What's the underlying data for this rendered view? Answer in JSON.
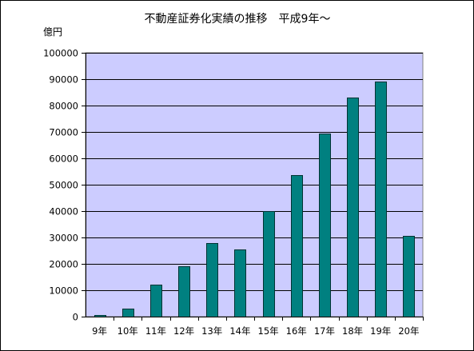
{
  "chart_data": {
    "type": "bar",
    "title": "不動産証券化実績の推移　平成9年～",
    "ylabel": "億円",
    "xlabel": "",
    "categories": [
      "9年",
      "10年",
      "11年",
      "12年",
      "13年",
      "14年",
      "15年",
      "16年",
      "17年",
      "18年",
      "19年",
      "20年"
    ],
    "values": [
      700,
      3000,
      12000,
      19000,
      28000,
      25500,
      40000,
      53500,
      69500,
      83000,
      89000,
      30500
    ],
    "ylim": [
      0,
      100000
    ],
    "yticks": [
      "0",
      "10000",
      "20000",
      "30000",
      "40000",
      "50000",
      "60000",
      "70000",
      "80000",
      "90000",
      "100000"
    ],
    "grid": true,
    "legend": "none",
    "colors": {
      "bar_fill": "#008080",
      "bar_stroke": "#003333",
      "plot_background": "#ccccff",
      "gridline": "#000000"
    }
  }
}
